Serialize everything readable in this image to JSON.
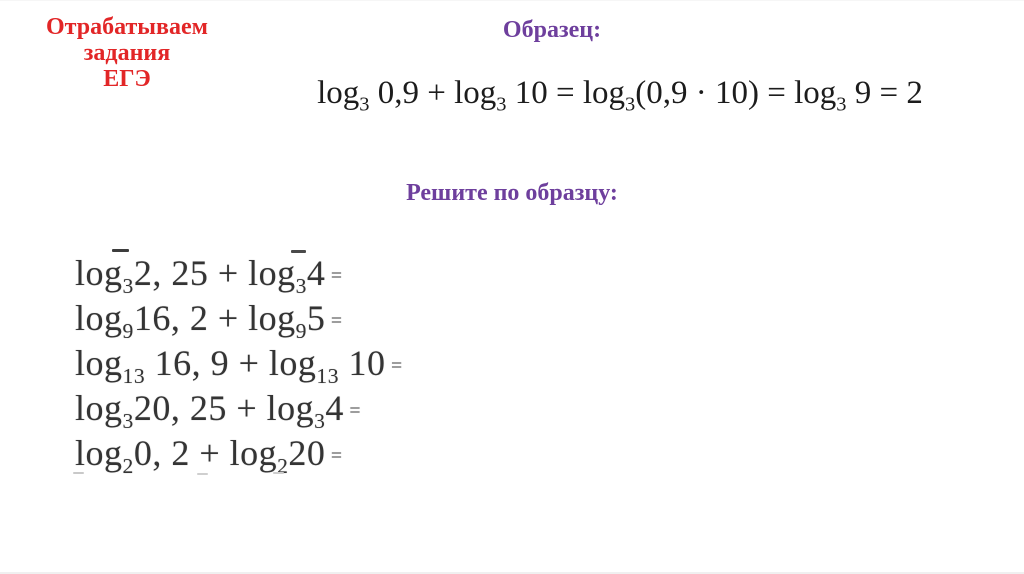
{
  "colors": {
    "background": "#ffffff",
    "title-red": "#e22627",
    "heading-purple": "#6e3f9d",
    "formula-ink": "#1c1c1c",
    "exercise-ink": "#343434"
  },
  "title": {
    "lines": [
      "Отрабатываем",
      "задания",
      "ЕГЭ"
    ]
  },
  "sample": {
    "heading": "Образец:",
    "formula": [
      {
        "t": "log"
      },
      {
        "sub": "3"
      },
      {
        "t": " 0,9 + log"
      },
      {
        "sub": "3"
      },
      {
        "t": " 10 = log"
      },
      {
        "sub": "3"
      },
      {
        "t": "(0,9 · 10) = log"
      },
      {
        "sub": "3"
      },
      {
        "t": " 9 = 2"
      }
    ]
  },
  "task": {
    "heading": "Решите по образцу:",
    "exercises": [
      {
        "segments": [
          {
            "t": "log"
          },
          {
            "sub": "3"
          },
          {
            "t": "2, 25 + log"
          },
          {
            "sub": "3"
          },
          {
            "t": "4"
          },
          {
            "t": " =",
            "small": true
          }
        ]
      },
      {
        "segments": [
          {
            "t": "log"
          },
          {
            "sub": "9"
          },
          {
            "t": "16, 2 + log"
          },
          {
            "sub": "9"
          },
          {
            "t": "5"
          },
          {
            "t": " =",
            "small": true
          }
        ]
      },
      {
        "segments": [
          {
            "t": "log"
          },
          {
            "sub": "13"
          },
          {
            "t": " 16, 9 + log"
          },
          {
            "sub": "13"
          },
          {
            "t": " 10"
          },
          {
            "t": " =",
            "small": true
          }
        ]
      },
      {
        "segments": [
          {
            "t": "log"
          },
          {
            "sub": "3"
          },
          {
            "t": "20, 25 + log"
          },
          {
            "sub": "3"
          },
          {
            "t": "4"
          },
          {
            "t": " =",
            "small": true
          }
        ]
      },
      {
        "segments": [
          {
            "t": "log"
          },
          {
            "sub": "2"
          },
          {
            "t": "0, 2 + log"
          },
          {
            "sub": "2"
          },
          {
            "t": "20"
          },
          {
            "t": " =",
            "small": true
          }
        ]
      }
    ]
  }
}
